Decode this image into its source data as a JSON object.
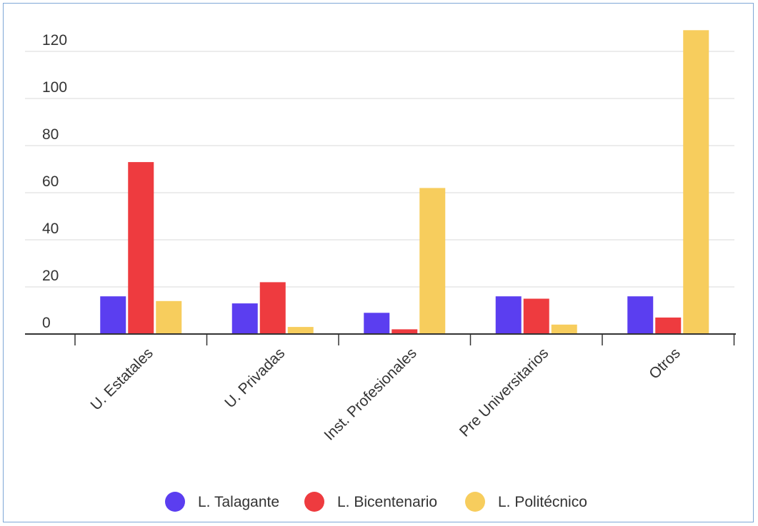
{
  "chart_data": {
    "type": "bar",
    "categories": [
      "U. Estatales",
      "U. Privadas",
      "Inst. Profesionales",
      "Pre Universitarios",
      "Otros"
    ],
    "series": [
      {
        "name": "L. Talagante",
        "color": "#5b3ef0",
        "values": [
          16,
          13,
          9,
          16,
          16
        ]
      },
      {
        "name": "L. Bicentenario",
        "color": "#ee3b3f",
        "values": [
          73,
          22,
          2,
          15,
          7
        ]
      },
      {
        "name": "L. Politécnico",
        "color": "#f7cd5d",
        "values": [
          14,
          3,
          62,
          4,
          129
        ]
      }
    ],
    "yticks": [
      0,
      20,
      40,
      60,
      80,
      100,
      120
    ],
    "ylim": [
      0,
      120
    ],
    "grid": true,
    "legend_position": "bottom"
  }
}
